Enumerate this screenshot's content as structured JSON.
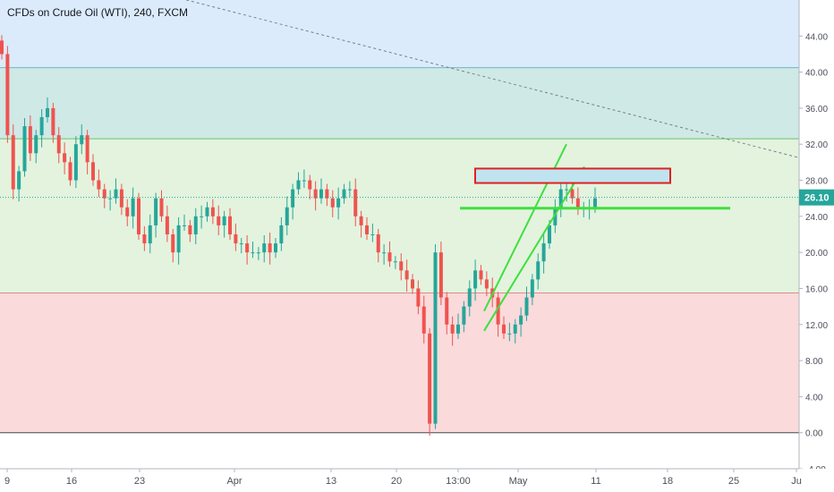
{
  "chart_data": {
    "type": "candlestick",
    "title": "CFDs on Crude Oil (WTI), 240, FXCM",
    "ylim": [
      -4,
      48
    ],
    "y_ticks": [
      "44.00",
      "40.00",
      "36.00",
      "32.00",
      "28.00",
      "24.00",
      "20.00",
      "16.00",
      "12.00",
      "8.00",
      "4.00",
      "0.00",
      "-4.00"
    ],
    "x_ticks": [
      "9",
      "16",
      "23",
      "Apr",
      "13",
      "20",
      "13:00",
      "May",
      "11",
      "18",
      "25",
      "Ju"
    ],
    "last_price_label": "26.10",
    "last_price": 26.1,
    "zones": [
      {
        "name": "resistance-zone-upper",
        "from": 40.5,
        "to": 48,
        "color": "#dcebfb"
      },
      {
        "name": "resistance-zone-lower",
        "from": 32.6,
        "to": 40.5,
        "color": "#cfe9e6"
      },
      {
        "name": "middle-zone",
        "from": 15.5,
        "to": 32.6,
        "color": "#e3f3de"
      },
      {
        "name": "support-zone",
        "from": 0,
        "to": 15.5,
        "color": "#fadadb"
      }
    ],
    "horizontal_lines": [
      40.5,
      32.6,
      15.5,
      0
    ],
    "support_line_level": 24.9,
    "resistance_box": {
      "from": 27.7,
      "to": 29.3
    },
    "series": [
      {
        "values": [
          42,
          33,
          27,
          29,
          34,
          31,
          33,
          35,
          36,
          33,
          31,
          30,
          28,
          32,
          33,
          30,
          28,
          27,
          26,
          26,
          27,
          25,
          24,
          26,
          22,
          21,
          23,
          26,
          24,
          22,
          20,
          23,
          23,
          22,
          24,
          24,
          25,
          24,
          23,
          24,
          22,
          21,
          21,
          20,
          20,
          20,
          21,
          20,
          21,
          23,
          25,
          27,
          28,
          28,
          27,
          26,
          27,
          26,
          25,
          26,
          27,
          27,
          24,
          23,
          22,
          22,
          20,
          20,
          19,
          19,
          18,
          17,
          16,
          14,
          11,
          1,
          20,
          15,
          12,
          11,
          12,
          14,
          16,
          18,
          17,
          16,
          15,
          12,
          11,
          11,
          12,
          13,
          15,
          17,
          19,
          21,
          23,
          25,
          27,
          27,
          26,
          25,
          25,
          25,
          26
        ]
      }
    ]
  }
}
